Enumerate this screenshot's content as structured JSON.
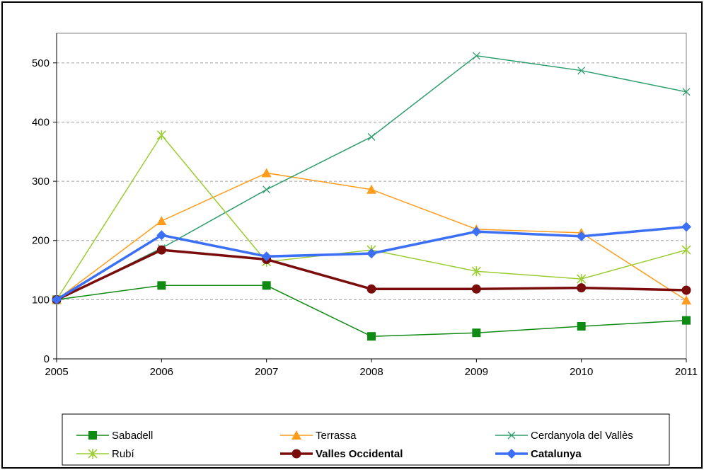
{
  "chart_data": {
    "type": "line",
    "title": "",
    "xlabel": "",
    "ylabel": "",
    "x": [
      2005,
      2006,
      2007,
      2008,
      2009,
      2010,
      2011
    ],
    "x_tick_labels": [
      "2005",
      "2006",
      "2007",
      "2008",
      "2009",
      "2010",
      "2011"
    ],
    "ylim": [
      0,
      550
    ],
    "y_ticks": [
      0,
      100,
      200,
      300,
      400,
      500
    ],
    "y_tick_labels": [
      "0",
      "100",
      "200",
      "300",
      "400",
      "500"
    ],
    "grid": "horizontal dashed",
    "legend_position": "bottom",
    "series": [
      {
        "name": "Sabadell",
        "color": "#0f8a12",
        "marker": "square",
        "bold": false,
        "values": [
          100,
          124,
          124,
          38,
          44,
          55,
          65
        ]
      },
      {
        "name": "Terrassa",
        "color": "#ff9c1c",
        "marker": "triangle",
        "bold": false,
        "values": [
          100,
          233,
          314,
          286,
          219,
          213,
          99
        ]
      },
      {
        "name": "Cerdanyola del Vallès",
        "color": "#2f9e6e",
        "marker": "x",
        "bold": false,
        "values": [
          99,
          187,
          286,
          375,
          512,
          487,
          451
        ]
      },
      {
        "name": "Rubí",
        "color": "#9acd32",
        "marker": "star",
        "bold": false,
        "values": [
          100,
          378,
          164,
          184,
          148,
          135,
          184
        ]
      },
      {
        "name": "Valles Occidental",
        "color": "#7b0c0c",
        "marker": "circle",
        "bold": true,
        "values": [
          100,
          184,
          168,
          118,
          118,
          120,
          116
        ]
      },
      {
        "name": "Catalunya",
        "color": "#3b6ff5",
        "marker": "diamond",
        "bold": true,
        "values": [
          100,
          209,
          173,
          178,
          215,
          207,
          223
        ]
      }
    ]
  }
}
